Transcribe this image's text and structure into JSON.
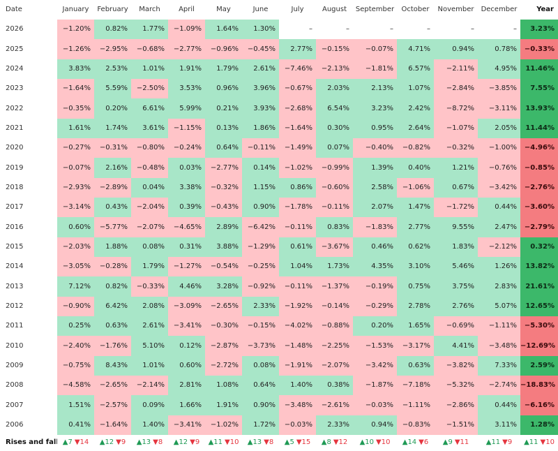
{
  "table": {
    "date_header": "Date",
    "year_header": "Year",
    "months": [
      "January",
      "February",
      "March",
      "April",
      "May",
      "June",
      "July",
      "August",
      "September",
      "October",
      "November",
      "December"
    ],
    "rows": [
      {
        "date": "2026",
        "values": [
          "−1.20%",
          "0.82%",
          "1.77%",
          "−1.09%",
          "1.64%",
          "1.30%",
          "–",
          "–",
          "–",
          "–",
          "–",
          "–"
        ],
        "year": "3.23%"
      },
      {
        "date": "2025",
        "values": [
          "−1.26%",
          "−2.95%",
          "−0.68%",
          "−2.77%",
          "−0.96%",
          "−0.45%",
          "2.77%",
          "−0.15%",
          "−0.07%",
          "4.71%",
          "0.94%",
          "0.78%"
        ],
        "year": "−0.33%"
      },
      {
        "date": "2024",
        "values": [
          "3.83%",
          "2.53%",
          "1.01%",
          "1.91%",
          "1.79%",
          "2.61%",
          "−7.46%",
          "−2.13%",
          "−1.81%",
          "6.57%",
          "−2.11%",
          "4.95%"
        ],
        "year": "11.46%"
      },
      {
        "date": "2023",
        "values": [
          "−1.64%",
          "5.59%",
          "−2.50%",
          "3.53%",
          "0.96%",
          "3.96%",
          "−0.67%",
          "2.03%",
          "2.13%",
          "1.07%",
          "−2.84%",
          "−3.85%"
        ],
        "year": "7.55%"
      },
      {
        "date": "2022",
        "values": [
          "−0.35%",
          "0.20%",
          "6.61%",
          "5.99%",
          "0.21%",
          "3.93%",
          "−2.68%",
          "6.54%",
          "3.23%",
          "2.42%",
          "−8.72%",
          "−3.11%"
        ],
        "year": "13.93%"
      },
      {
        "date": "2021",
        "values": [
          "1.61%",
          "1.74%",
          "3.61%",
          "−1.15%",
          "0.13%",
          "1.86%",
          "−1.64%",
          "0.30%",
          "0.95%",
          "2.64%",
          "−1.07%",
          "2.05%"
        ],
        "year": "11.44%"
      },
      {
        "date": "2020",
        "values": [
          "−0.27%",
          "−0.31%",
          "−0.80%",
          "−0.24%",
          "0.64%",
          "−0.11%",
          "−1.49%",
          "0.07%",
          "−0.40%",
          "−0.82%",
          "−0.32%",
          "−1.00%"
        ],
        "year": "−4.96%"
      },
      {
        "date": "2019",
        "values": [
          "−0.07%",
          "2.16%",
          "−0.48%",
          "0.03%",
          "−2.77%",
          "0.14%",
          "−1.02%",
          "−0.99%",
          "1.39%",
          "0.40%",
          "1.21%",
          "−0.76%"
        ],
        "year": "−0.85%"
      },
      {
        "date": "2018",
        "values": [
          "−2.93%",
          "−2.89%",
          "0.04%",
          "3.38%",
          "−0.32%",
          "1.15%",
          "0.86%",
          "−0.60%",
          "2.58%",
          "−1.06%",
          "0.67%",
          "−3.42%"
        ],
        "year": "−2.76%"
      },
      {
        "date": "2017",
        "values": [
          "−3.14%",
          "0.43%",
          "−2.04%",
          "0.39%",
          "−0.43%",
          "0.90%",
          "−1.78%",
          "−0.11%",
          "2.07%",
          "1.47%",
          "−1.72%",
          "0.44%"
        ],
        "year": "−3.60%"
      },
      {
        "date": "2016",
        "values": [
          "0.60%",
          "−5.77%",
          "−2.07%",
          "−4.65%",
          "2.89%",
          "−6.42%",
          "−0.11%",
          "0.83%",
          "−1.83%",
          "2.77%",
          "9.55%",
          "2.47%"
        ],
        "year": "−2.79%"
      },
      {
        "date": "2015",
        "values": [
          "−2.03%",
          "1.88%",
          "0.08%",
          "0.31%",
          "3.88%",
          "−1.29%",
          "0.61%",
          "−3.67%",
          "0.46%",
          "0.62%",
          "1.83%",
          "−2.12%"
        ],
        "year": "0.32%"
      },
      {
        "date": "2014",
        "values": [
          "−3.05%",
          "−0.28%",
          "1.79%",
          "−1.27%",
          "−0.54%",
          "−0.25%",
          "1.04%",
          "1.73%",
          "4.35%",
          "3.10%",
          "5.46%",
          "1.26%"
        ],
        "year": "13.82%"
      },
      {
        "date": "2013",
        "values": [
          "7.12%",
          "0.82%",
          "−0.33%",
          "4.46%",
          "3.28%",
          "−0.92%",
          "−0.11%",
          "−1.37%",
          "−0.19%",
          "0.75%",
          "3.75%",
          "2.83%"
        ],
        "year": "21.61%"
      },
      {
        "date": "2012",
        "values": [
          "−0.90%",
          "6.42%",
          "2.08%",
          "−3.09%",
          "−2.65%",
          "2.33%",
          "−1.92%",
          "−0.14%",
          "−0.29%",
          "2.78%",
          "2.76%",
          "5.07%"
        ],
        "year": "12.65%"
      },
      {
        "date": "2011",
        "values": [
          "0.25%",
          "0.63%",
          "2.61%",
          "−3.41%",
          "−0.30%",
          "−0.15%",
          "−4.02%",
          "−0.88%",
          "0.20%",
          "1.65%",
          "−0.69%",
          "−1.11%"
        ],
        "year": "−5.30%"
      },
      {
        "date": "2010",
        "values": [
          "−2.40%",
          "−1.76%",
          "5.10%",
          "0.12%",
          "−2.87%",
          "−3.73%",
          "−1.48%",
          "−2.25%",
          "−1.53%",
          "−3.17%",
          "4.41%",
          "−3.48%"
        ],
        "year": "−12.69%"
      },
      {
        "date": "2009",
        "values": [
          "−0.75%",
          "8.43%",
          "1.01%",
          "0.60%",
          "−2.72%",
          "0.08%",
          "−1.91%",
          "−2.07%",
          "−3.42%",
          "0.63%",
          "−3.82%",
          "7.33%"
        ],
        "year": "2.59%"
      },
      {
        "date": "2008",
        "values": [
          "−4.58%",
          "−2.65%",
          "−2.14%",
          "2.81%",
          "1.08%",
          "0.64%",
          "1.40%",
          "0.38%",
          "−1.87%",
          "−7.18%",
          "−5.32%",
          "−2.74%"
        ],
        "year": "−18.83%"
      },
      {
        "date": "2007",
        "values": [
          "1.51%",
          "−2.57%",
          "0.09%",
          "1.66%",
          "1.91%",
          "0.90%",
          "−3.48%",
          "−2.61%",
          "−0.03%",
          "−1.11%",
          "−2.86%",
          "0.44%"
        ],
        "year": "−6.16%"
      },
      {
        "date": "2006",
        "values": [
          "0.41%",
          "−1.64%",
          "1.40%",
          "−3.41%",
          "−1.02%",
          "1.72%",
          "−0.03%",
          "2.33%",
          "0.94%",
          "−0.83%",
          "−1.51%",
          "3.11%"
        ],
        "year": "1.28%"
      }
    ],
    "footer": {
      "label": "Rises and falls",
      "counts": [
        {
          "up": "7",
          "down": "14"
        },
        {
          "up": "12",
          "down": "9"
        },
        {
          "up": "13",
          "down": "8"
        },
        {
          "up": "12",
          "down": "9"
        },
        {
          "up": "11",
          "down": "10"
        },
        {
          "up": "13",
          "down": "8"
        },
        {
          "up": "5",
          "down": "15"
        },
        {
          "up": "8",
          "down": "12"
        },
        {
          "up": "10",
          "down": "10"
        },
        {
          "up": "14",
          "down": "6"
        },
        {
          "up": "9",
          "down": "11"
        },
        {
          "up": "11",
          "down": "9"
        }
      ],
      "year_counts": {
        "up": "11",
        "down": "10"
      }
    },
    "icons": {
      "rise": "triangle-up-icon",
      "fall": "triangle-down-icon"
    },
    "colors": {
      "positive": "#a8e6c8",
      "negative": "#ffc4c8",
      "year_positive": "#3cb86a",
      "year_negative": "#f47c80",
      "rise_icon": "#1f9a55",
      "fall_icon": "#e5353f"
    }
  }
}
